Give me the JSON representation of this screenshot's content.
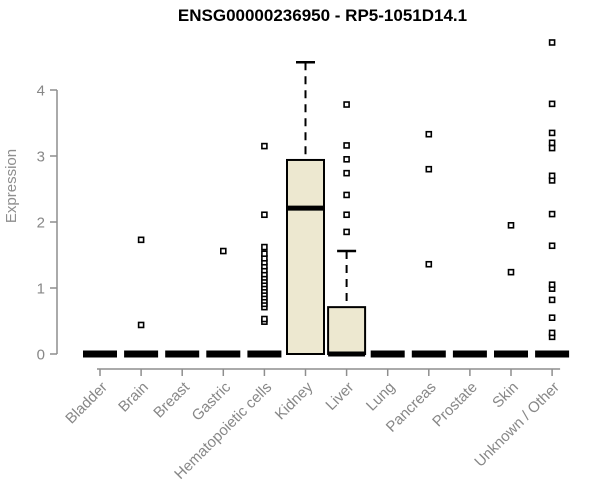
{
  "chart_data": {
    "type": "boxplot",
    "title": "ENSG00000236950 - RP5-1051D14.1",
    "xlabel": "",
    "ylabel": "Expression",
    "ylim": [
      0,
      4.8
    ],
    "yticks": [
      0,
      1,
      2,
      3,
      4
    ],
    "grid": false,
    "legend": null,
    "categories": [
      "Bladder",
      "Brain",
      "Breast",
      "Gastric",
      "Hematopoietic cells",
      "Kidney",
      "Liver",
      "Lung",
      "Pancreas",
      "Prostate",
      "Skin",
      "Unknown / Other"
    ],
    "series": [
      {
        "name": "Bladder",
        "q1": 0,
        "median": 0,
        "q3": 0,
        "whisker_low": 0,
        "whisker_high": 0,
        "outliers": []
      },
      {
        "name": "Brain",
        "q1": 0,
        "median": 0,
        "q3": 0,
        "whisker_low": 0,
        "whisker_high": 0,
        "outliers": [
          0.44,
          1.73
        ]
      },
      {
        "name": "Breast",
        "q1": 0,
        "median": 0,
        "q3": 0,
        "whisker_low": 0,
        "whisker_high": 0,
        "outliers": []
      },
      {
        "name": "Gastric",
        "q1": 0,
        "median": 0,
        "q3": 0,
        "whisker_low": 0,
        "whisker_high": 0,
        "outliers": [
          1.56
        ]
      },
      {
        "name": "Hematopoietic cells",
        "q1": 0,
        "median": 0,
        "q3": 0,
        "whisker_low": 0,
        "whisker_high": 0,
        "outliers": [
          0.49,
          0.53,
          0.71,
          0.76,
          0.81,
          0.86,
          0.91,
          0.96,
          1.01,
          1.06,
          1.11,
          1.16,
          1.21,
          1.27,
          1.33,
          1.39,
          1.45,
          1.52,
          1.62,
          2.11,
          3.15
        ]
      },
      {
        "name": "Kidney",
        "q1": 0,
        "median": 2.21,
        "q3": 2.94,
        "whisker_low": 0,
        "whisker_high": 4.42,
        "outliers": []
      },
      {
        "name": "Liver",
        "q1": 0,
        "median": 0,
        "q3": 0.71,
        "whisker_low": 0,
        "whisker_high": 1.56,
        "outliers": [
          1.85,
          2.11,
          2.41,
          2.74,
          2.95,
          3.16,
          3.78
        ]
      },
      {
        "name": "Lung",
        "q1": 0,
        "median": 0,
        "q3": 0,
        "whisker_low": 0,
        "whisker_high": 0,
        "outliers": []
      },
      {
        "name": "Pancreas",
        "q1": 0,
        "median": 0,
        "q3": 0,
        "whisker_low": 0,
        "whisker_high": 0,
        "outliers": [
          1.36,
          2.8,
          3.33
        ]
      },
      {
        "name": "Prostate",
        "q1": 0,
        "median": 0,
        "q3": 0,
        "whisker_low": 0,
        "whisker_high": 0,
        "outliers": []
      },
      {
        "name": "Skin",
        "q1": 0,
        "median": 0,
        "q3": 0,
        "whisker_low": 0,
        "whisker_high": 0,
        "outliers": [
          1.24,
          1.95
        ]
      },
      {
        "name": "Unknown / Other",
        "q1": 0,
        "median": 0,
        "q3": 0,
        "whisker_low": 0,
        "whisker_high": 0,
        "outliers": [
          0.26,
          0.32,
          0.55,
          0.82,
          0.99,
          1.05,
          1.64,
          2.12,
          2.63,
          2.7,
          3.12,
          3.2,
          3.35,
          3.79,
          4.72
        ]
      }
    ],
    "colors": {
      "box_fill": "#EDE8D0",
      "box_stroke": "#000000",
      "median": "#000000",
      "whisker": "#000000",
      "outlier_stroke": "#000000",
      "outlier_fill": "#FFFFFF",
      "axis": "#8E8E8E",
      "tick_text": "#878787",
      "title_text": "#000000"
    }
  }
}
